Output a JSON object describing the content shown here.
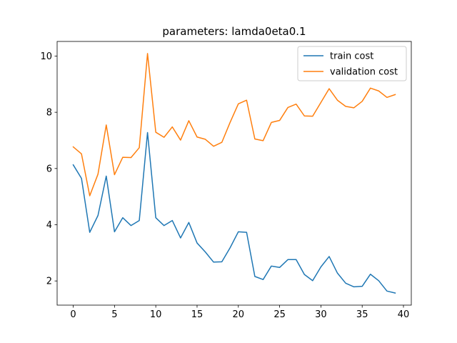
{
  "chart_data": {
    "type": "line",
    "title": "parameters: lamda0eta0.1",
    "xlabel": "",
    "ylabel": "",
    "xlim": [
      -1.95,
      40.95
    ],
    "ylim": [
      1.14,
      10.52
    ],
    "xticks": [
      0,
      5,
      10,
      15,
      20,
      25,
      30,
      35,
      40
    ],
    "yticks": [
      2,
      4,
      6,
      8,
      10
    ],
    "grid": false,
    "legend_position": "upper right",
    "x": [
      0,
      1,
      2,
      3,
      4,
      5,
      6,
      7,
      8,
      9,
      10,
      11,
      12,
      13,
      14,
      15,
      16,
      17,
      18,
      19,
      20,
      21,
      22,
      23,
      24,
      25,
      26,
      27,
      28,
      29,
      30,
      31,
      32,
      33,
      34,
      35,
      36,
      37,
      38,
      39
    ],
    "series": [
      {
        "name": "train cost",
        "color": "#1f77b4",
        "values": [
          6.13,
          5.65,
          3.73,
          4.33,
          5.73,
          3.75,
          4.25,
          3.97,
          4.15,
          7.28,
          4.25,
          3.97,
          4.15,
          3.53,
          4.08,
          3.35,
          3.03,
          2.67,
          2.68,
          3.18,
          3.75,
          3.73,
          2.16,
          2.05,
          2.53,
          2.48,
          2.76,
          2.76,
          2.23,
          2.01,
          2.5,
          2.87,
          2.28,
          1.92,
          1.79,
          1.81,
          2.24,
          2.01,
          1.64,
          1.57
        ]
      },
      {
        "name": "validation cost",
        "color": "#ff7f0e",
        "values": [
          6.77,
          6.52,
          5.03,
          5.8,
          7.55,
          5.78,
          6.4,
          6.39,
          6.74,
          10.09,
          7.29,
          7.11,
          7.48,
          7.01,
          7.7,
          7.12,
          7.04,
          6.79,
          6.93,
          7.64,
          8.3,
          8.43,
          7.05,
          6.99,
          7.64,
          7.71,
          8.17,
          8.29,
          7.87,
          7.86,
          8.35,
          8.84,
          8.43,
          8.21,
          8.16,
          8.39,
          8.86,
          8.76,
          8.53,
          8.63
        ]
      }
    ]
  }
}
